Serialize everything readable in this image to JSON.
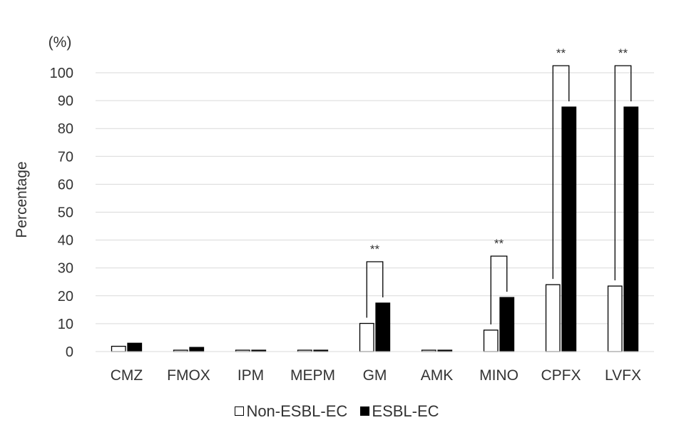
{
  "chart_data": {
    "type": "bar",
    "categories": [
      "CMZ",
      "FMOX",
      "IPM",
      "MEPM",
      "GM",
      "AMK",
      "MINO",
      "CPFX",
      "LVFX"
    ],
    "series": [
      {
        "name": "Non-ESBL-EC",
        "color": "#ffffff",
        "stroke": "#000000",
        "values": [
          1.9,
          0.5,
          0.5,
          0.5,
          10.1,
          0.5,
          7.7,
          24.0,
          23.5
        ]
      },
      {
        "name": "ESBL-EC",
        "color": "#000000",
        "stroke": "#000000",
        "values": [
          3.0,
          1.5,
          0.5,
          0.5,
          17.4,
          0.5,
          19.4,
          87.7,
          87.7
        ]
      }
    ],
    "ylim": [
      0,
      100
    ],
    "yticks": [
      0,
      10,
      20,
      30,
      40,
      50,
      60,
      70,
      80,
      90,
      100
    ],
    "ylabel": "Percentage",
    "yunit": "(%)",
    "xlabel": "",
    "title": "",
    "grid": true,
    "legend_position": "bottom",
    "significance": [
      {
        "category": "GM",
        "label": "**"
      },
      {
        "category": "MINO",
        "label": "**"
      },
      {
        "category": "CPFX",
        "label": "**"
      },
      {
        "category": "LVFX",
        "label": "**"
      }
    ]
  }
}
